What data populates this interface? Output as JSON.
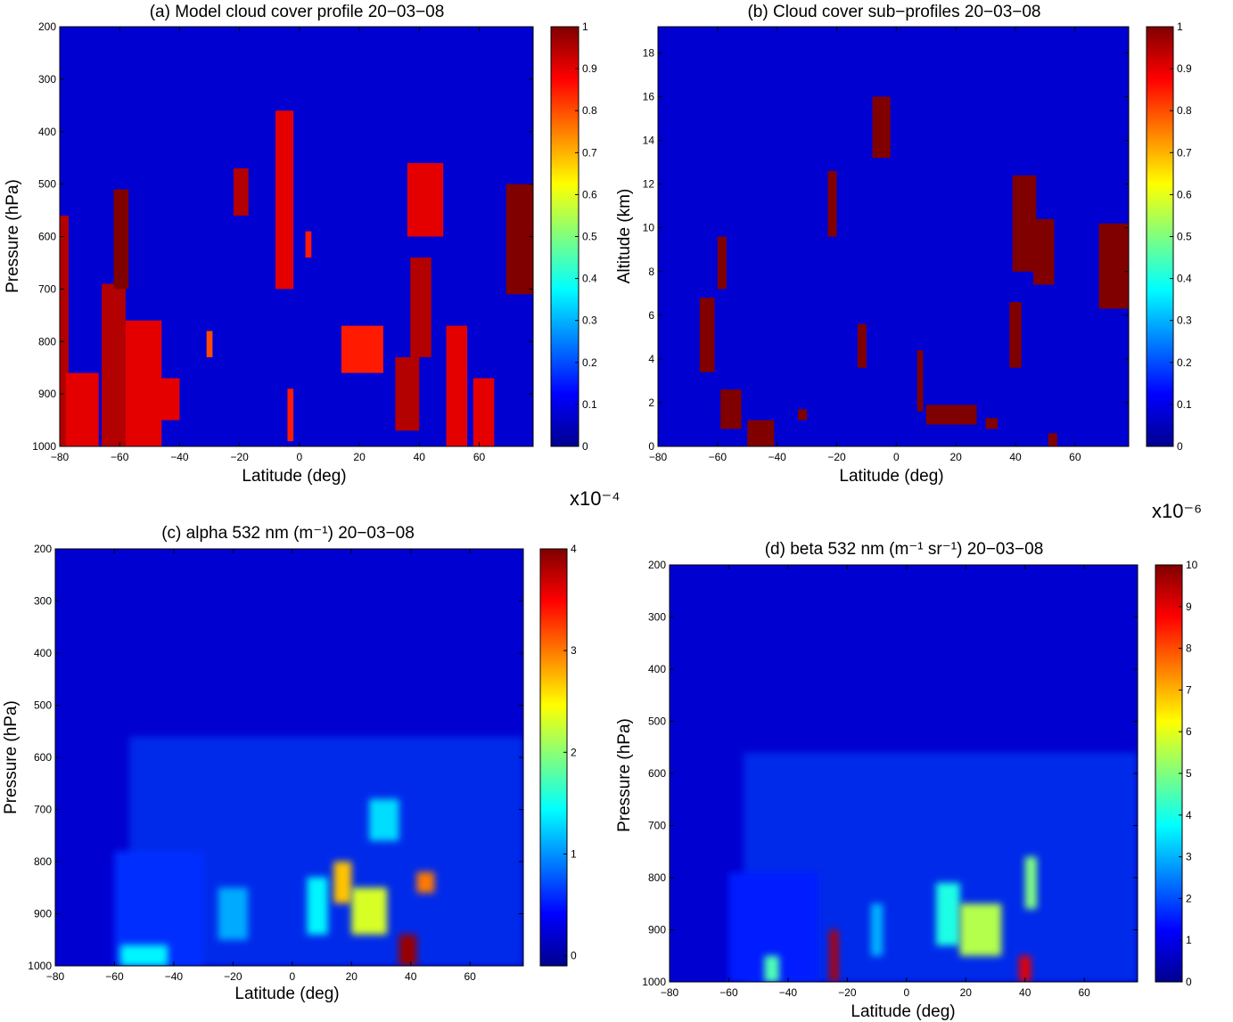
{
  "colors": {
    "colormap": "jet",
    "background": "#00008f"
  },
  "chart_data": [
    {
      "id": "a",
      "type": "heatmap",
      "title": "(a) Model cloud cover profile 20−03−08",
      "xlabel": "Latitude (deg)",
      "ylabel": "Pressure (hPa)",
      "xlim": [
        -80,
        78
      ],
      "ylim": [
        200,
        1000
      ],
      "y_reversed": true,
      "xticks": [
        -80,
        -60,
        -40,
        -20,
        0,
        20,
        40,
        60
      ],
      "xticklabels": [
        "−80",
        "−60",
        "−40",
        "−20",
        "0",
        "20",
        "40",
        "60"
      ],
      "yticks": [
        200,
        300,
        400,
        500,
        600,
        700,
        800,
        900,
        1000
      ],
      "yticklabels": [
        "200",
        "300",
        "400",
        "500",
        "600",
        "700",
        "800",
        "900",
        "1000"
      ],
      "colorbar": {
        "range": [
          0,
          1
        ],
        "ticks": [
          0,
          0.1,
          0.2,
          0.3,
          0.4,
          0.5,
          0.6,
          0.7,
          0.8,
          0.9,
          1
        ],
        "ticklabels": [
          "0",
          "0.1",
          "0.2",
          "0.3",
          "0.4",
          "0.5",
          "0.6",
          "0.7",
          "0.8",
          "0.9",
          "1"
        ]
      },
      "features": [
        {
          "x": [
            -80,
            -77
          ],
          "y": [
            560,
            1000
          ],
          "value": 0.95
        },
        {
          "x": [
            -78,
            -67
          ],
          "y": [
            860,
            1000
          ],
          "value": 0.9
        },
        {
          "x": [
            -66,
            -58
          ],
          "y": [
            690,
            1000
          ],
          "value": 0.95
        },
        {
          "x": [
            -62,
            -57
          ],
          "y": [
            510,
            700
          ],
          "value": 1.0
        },
        {
          "x": [
            -58,
            -46
          ],
          "y": [
            760,
            1000
          ],
          "value": 0.9
        },
        {
          "x": [
            -50,
            -40
          ],
          "y": [
            870,
            950
          ],
          "value": 0.9
        },
        {
          "x": [
            -31,
            -29
          ],
          "y": [
            780,
            830
          ],
          "value": 0.8
        },
        {
          "x": [
            -22,
            -17
          ],
          "y": [
            470,
            560
          ],
          "value": 0.95
        },
        {
          "x": [
            -8,
            -2
          ],
          "y": [
            360,
            700
          ],
          "value": 0.9
        },
        {
          "x": [
            -4,
            -2
          ],
          "y": [
            890,
            990
          ],
          "value": 0.85
        },
        {
          "x": [
            2,
            4
          ],
          "y": [
            590,
            640
          ],
          "value": 0.85
        },
        {
          "x": [
            14,
            28
          ],
          "y": [
            770,
            860
          ],
          "value": 0.85
        },
        {
          "x": [
            32,
            40
          ],
          "y": [
            830,
            970
          ],
          "value": 0.95
        },
        {
          "x": [
            36,
            48
          ],
          "y": [
            460,
            600
          ],
          "value": 0.9
        },
        {
          "x": [
            37,
            44
          ],
          "y": [
            640,
            830
          ],
          "value": 0.95
        },
        {
          "x": [
            49,
            56
          ],
          "y": [
            770,
            1000
          ],
          "value": 0.9
        },
        {
          "x": [
            58,
            65
          ],
          "y": [
            870,
            1000
          ],
          "value": 0.9
        },
        {
          "x": [
            69,
            78
          ],
          "y": [
            500,
            710
          ],
          "value": 1.0
        }
      ]
    },
    {
      "id": "b",
      "type": "heatmap",
      "title": "(b) Cloud cover sub−profiles 20−03−08",
      "xlabel": "Latitude (deg)",
      "ylabel": "Altitude (km)",
      "xlim": [
        -80,
        78
      ],
      "ylim": [
        0,
        19.2
      ],
      "xticks": [
        -80,
        -60,
        -40,
        -20,
        0,
        20,
        40,
        60
      ],
      "xticklabels": [
        "−80",
        "−60",
        "−40",
        "−20",
        "0",
        "20",
        "40",
        "60"
      ],
      "yticks": [
        0,
        2,
        4,
        6,
        8,
        10,
        12,
        14,
        16,
        18
      ],
      "yticklabels": [
        "0",
        "2",
        "4",
        "6",
        "8",
        "10",
        "12",
        "14",
        "16",
        "18"
      ],
      "colorbar": {
        "range": [
          0,
          1
        ],
        "ticks": [
          0,
          0.1,
          0.2,
          0.3,
          0.4,
          0.5,
          0.6,
          0.7,
          0.8,
          0.9,
          1
        ],
        "ticklabels": [
          "0",
          "0.1",
          "0.2",
          "0.3",
          "0.4",
          "0.5",
          "0.6",
          "0.7",
          "0.8",
          "0.9",
          "1"
        ]
      },
      "features": [
        {
          "x": [
            -66,
            -61
          ],
          "y": [
            3.4,
            6.8
          ],
          "value": 1
        },
        {
          "x": [
            -60,
            -57
          ],
          "y": [
            7.2,
            9.6
          ],
          "value": 1
        },
        {
          "x": [
            -59,
            -52
          ],
          "y": [
            0.8,
            2.6
          ],
          "value": 1
        },
        {
          "x": [
            -50,
            -41
          ],
          "y": [
            0,
            1.2
          ],
          "value": 1
        },
        {
          "x": [
            -33,
            -30
          ],
          "y": [
            1.2,
            1.7
          ],
          "value": 1
        },
        {
          "x": [
            -23,
            -20
          ],
          "y": [
            9.6,
            12.6
          ],
          "value": 1
        },
        {
          "x": [
            -8,
            -2
          ],
          "y": [
            13.2,
            16.0
          ],
          "value": 1
        },
        {
          "x": [
            -13,
            -10
          ],
          "y": [
            3.6,
            5.6
          ],
          "value": 1
        },
        {
          "x": [
            7,
            9
          ],
          "y": [
            1.6,
            4.4
          ],
          "value": 1
        },
        {
          "x": [
            10,
            27
          ],
          "y": [
            1.0,
            1.9
          ],
          "value": 1
        },
        {
          "x": [
            30,
            34
          ],
          "y": [
            0.8,
            1.3
          ],
          "value": 1
        },
        {
          "x": [
            39,
            47
          ],
          "y": [
            8.0,
            12.4
          ],
          "value": 1
        },
        {
          "x": [
            46,
            53
          ],
          "y": [
            7.4,
            10.4
          ],
          "value": 1
        },
        {
          "x": [
            38,
            42
          ],
          "y": [
            3.6,
            6.6
          ],
          "value": 1
        },
        {
          "x": [
            51,
            54
          ],
          "y": [
            0,
            0.6
          ],
          "value": 1
        },
        {
          "x": [
            68,
            78
          ],
          "y": [
            6.3,
            10.2
          ],
          "value": 1
        }
      ]
    },
    {
      "id": "c",
      "type": "heatmap",
      "title": "(c) alpha 532 nm (m⁻¹) 20−03−08",
      "xlabel": "Latitude (deg)",
      "ylabel": "Pressure (hPa)",
      "scale_label": "x10⁻⁴",
      "xlim": [
        -80,
        78
      ],
      "ylim": [
        200,
        1000
      ],
      "y_reversed": true,
      "xticks": [
        -80,
        -60,
        -40,
        -20,
        0,
        20,
        40,
        60
      ],
      "xticklabels": [
        "−80",
        "−60",
        "−40",
        "−20",
        "0",
        "20",
        "40",
        "60"
      ],
      "yticks": [
        200,
        300,
        400,
        500,
        600,
        700,
        800,
        900,
        1000
      ],
      "yticklabels": [
        "200",
        "300",
        "400",
        "500",
        "600",
        "700",
        "800",
        "900",
        "1000"
      ],
      "colorbar": {
        "range": [
          -0.1,
          4
        ],
        "ticks": [
          0,
          1,
          2,
          3,
          4
        ],
        "ticklabels": [
          "0",
          "1",
          "2",
          "3",
          "4"
        ]
      },
      "features": [
        {
          "x": [
            -60,
            -30
          ],
          "y": [
            780,
            1000
          ],
          "value": 0.6
        },
        {
          "x": [
            -25,
            -15
          ],
          "y": [
            850,
            950
          ],
          "value": 1.1
        },
        {
          "x": [
            5,
            12
          ],
          "y": [
            830,
            940
          ],
          "value": 1.4
        },
        {
          "x": [
            14,
            20
          ],
          "y": [
            800,
            880
          ],
          "value": 2.7
        },
        {
          "x": [
            20,
            32
          ],
          "y": [
            850,
            940
          ],
          "value": 2.3
        },
        {
          "x": [
            36,
            42
          ],
          "y": [
            940,
            1000
          ],
          "value": 3.9
        },
        {
          "x": [
            26,
            36
          ],
          "y": [
            680,
            760
          ],
          "value": 1.3
        },
        {
          "x": [
            42,
            48
          ],
          "y": [
            820,
            860
          ],
          "value": 3.0
        },
        {
          "x": [
            -58,
            -42
          ],
          "y": [
            960,
            1000
          ],
          "value": 1.4
        }
      ]
    },
    {
      "id": "d",
      "type": "heatmap",
      "title": "(d) beta 532 nm (m⁻¹ sr⁻¹) 20−03−08",
      "xlabel": "Latitude (deg)",
      "ylabel": "Pressure (hPa)",
      "scale_label": "x10⁻⁶",
      "xlim": [
        -80,
        78
      ],
      "ylim": [
        200,
        1000
      ],
      "y_reversed": true,
      "xticks": [
        -80,
        -60,
        -40,
        -20,
        0,
        20,
        40,
        60
      ],
      "xticklabels": [
        "−80",
        "−60",
        "−40",
        "−20",
        "0",
        "20",
        "40",
        "60"
      ],
      "yticks": [
        200,
        300,
        400,
        500,
        600,
        700,
        800,
        900,
        1000
      ],
      "yticklabels": [
        "200",
        "300",
        "400",
        "500",
        "600",
        "700",
        "800",
        "900",
        "1000"
      ],
      "colorbar": {
        "range": [
          0,
          10
        ],
        "ticks": [
          0,
          1,
          2,
          3,
          4,
          5,
          6,
          7,
          8,
          9,
          10
        ],
        "ticklabels": [
          "0",
          "1",
          "2",
          "3",
          "4",
          "5",
          "6",
          "7",
          "8",
          "9",
          "10"
        ]
      },
      "features": [
        {
          "x": [
            -60,
            -30
          ],
          "y": [
            790,
            1000
          ],
          "value": 1.5
        },
        {
          "x": [
            -26,
            -23
          ],
          "y": [
            900,
            1000
          ],
          "value": 9.5
        },
        {
          "x": [
            -12,
            -8
          ],
          "y": [
            850,
            950
          ],
          "value": 3.0
        },
        {
          "x": [
            10,
            18
          ],
          "y": [
            810,
            930
          ],
          "value": 4.0
        },
        {
          "x": [
            18,
            32
          ],
          "y": [
            850,
            950
          ],
          "value": 5.5
        },
        {
          "x": [
            38,
            42
          ],
          "y": [
            950,
            1000
          ],
          "value": 9.0
        },
        {
          "x": [
            40,
            44
          ],
          "y": [
            760,
            860
          ],
          "value": 5.0
        },
        {
          "x": [
            -48,
            -43
          ],
          "y": [
            950,
            1000
          ],
          "value": 4.5
        }
      ]
    }
  ]
}
